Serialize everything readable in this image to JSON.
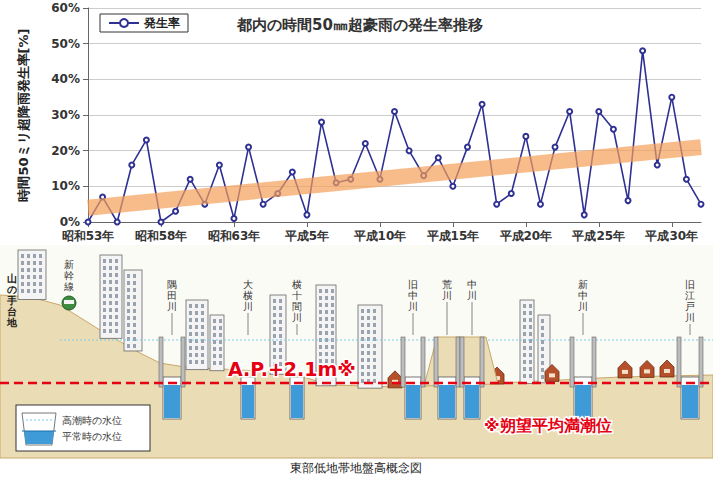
{
  "chart_data": {
    "type": "line",
    "title": "都内の時間50㎜超豪雨の発生率推移",
    "y_label": "時間50ミリ超降雨発生率[%]",
    "categories": [
      "昭和53年",
      null,
      null,
      null,
      null,
      "昭和58年",
      null,
      null,
      null,
      null,
      "昭和63年",
      null,
      null,
      null,
      null,
      "平成5年",
      null,
      null,
      null,
      null,
      "平成10年",
      null,
      null,
      null,
      null,
      "平成15年",
      null,
      null,
      null,
      null,
      "平成20年",
      null,
      null,
      null,
      null,
      "平成25年",
      null,
      null,
      null,
      null,
      "平成30年",
      null,
      null
    ],
    "series": [
      {
        "name": "発生率",
        "color": "#2e3192",
        "marker": "circle",
        "values": [
          0,
          7,
          0,
          16,
          23,
          0,
          3,
          12,
          5,
          16,
          1,
          21,
          5,
          8,
          14,
          2,
          28,
          11,
          12,
          22,
          12,
          31,
          20,
          13,
          18,
          10,
          21,
          33,
          5,
          8,
          24,
          5,
          21,
          31,
          2,
          31,
          26,
          6,
          48,
          16,
          35,
          12,
          5
        ]
      }
    ],
    "trend_arrow": {
      "color": "#f5a05a",
      "values": [
        4,
        21
      ]
    },
    "ylim": [
      0,
      60
    ],
    "yticks": [
      {
        "value": 0,
        "label": "0%"
      },
      {
        "value": 10,
        "label": "10%"
      },
      {
        "value": 20,
        "label": "20%"
      },
      {
        "value": 30,
        "label": "30%"
      },
      {
        "value": 40,
        "label": "40%"
      },
      {
        "value": 50,
        "label": "50%"
      },
      {
        "value": 60,
        "label": "60%"
      }
    ],
    "grid": true,
    "legend": "upper left"
  },
  "diagram": {
    "title": "東部低地帯地盤高概念図",
    "upland": "山の手台地",
    "railway": "新幹線",
    "rivers": [
      "隅田川",
      "大横川",
      "横十間川",
      "旧中川",
      "荒川",
      "中川",
      "新中川",
      "旧江戸川"
    ],
    "reference_line": {
      "label": "A.P.+2.1m※",
      "note": "※朔望平均満潮位"
    },
    "water_levels": [
      "高潮時の水位",
      "平常時の水位"
    ]
  }
}
